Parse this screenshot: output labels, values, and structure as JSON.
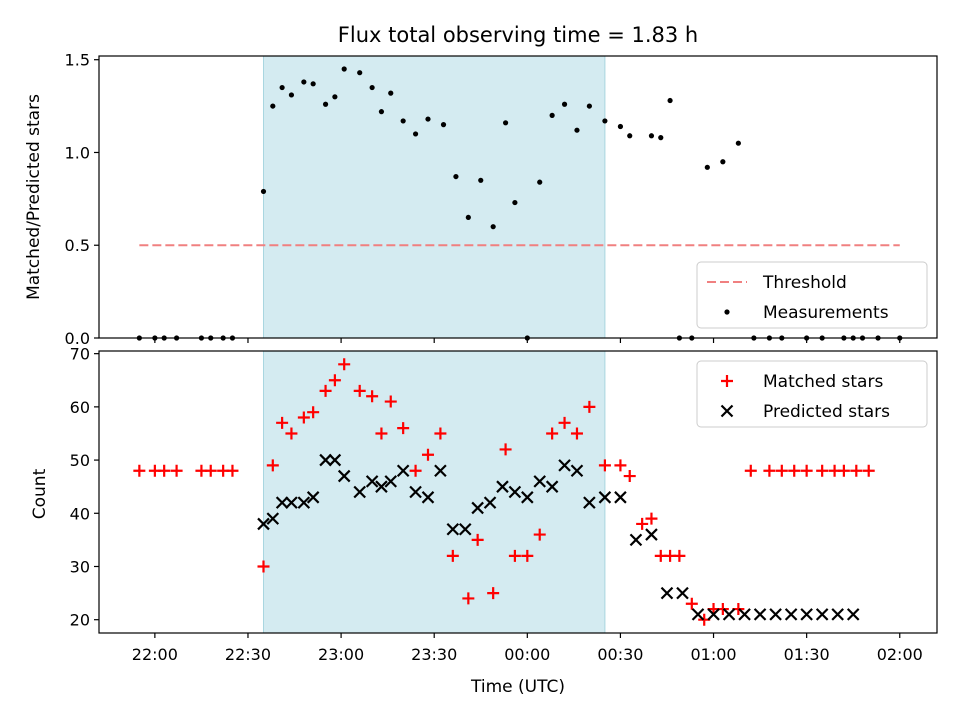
{
  "chart_data": [
    {
      "type": "scatter",
      "title": "Flux total observing time = 1.83 h",
      "xlabel": "",
      "ylabel": "Matched/Predicted stars",
      "ylim": [
        0,
        1.52
      ],
      "yticks": [
        "0.0",
        "0.5",
        "1.0",
        "1.5"
      ],
      "ytick_values": [
        0,
        0.5,
        1.0,
        1.5
      ],
      "shaded_interval": [
        "22:35",
        "00:25"
      ],
      "shade_color": "#d4ebf1",
      "threshold": {
        "name": "Threshold",
        "y": 0.5,
        "x_range": [
          "21:55",
          "02:00"
        ],
        "color": "#f08080"
      },
      "legend": {
        "position": "lower-right",
        "entries": [
          "Threshold",
          "Measurements"
        ]
      },
      "series": [
        {
          "name": "Measurements",
          "color": "#000000",
          "x": [
            "21:55",
            "22:00",
            "22:03",
            "22:07",
            "22:15",
            "22:18",
            "22:22",
            "22:25",
            "22:35",
            "22:38",
            "22:41",
            "22:44",
            "22:48",
            "22:51",
            "22:55",
            "22:58",
            "23:01",
            "23:06",
            "23:10",
            "23:13",
            "23:16",
            "23:20",
            "23:24",
            "23:28",
            "23:33",
            "23:37",
            "23:41",
            "23:45",
            "23:49",
            "23:53",
            "23:56",
            "00:00",
            "00:04",
            "00:08",
            "00:12",
            "00:16",
            "00:20",
            "00:25",
            "00:30",
            "00:33",
            "00:40",
            "00:43",
            "00:46",
            "00:49",
            "00:53",
            "00:58",
            "01:03",
            "01:08",
            "01:13",
            "01:18",
            "01:22",
            "01:30",
            "01:35",
            "01:42",
            "01:45",
            "01:48",
            "01:53",
            "02:00"
          ],
          "y": [
            0,
            0,
            0,
            0,
            0,
            0,
            0,
            0,
            0.79,
            1.25,
            1.35,
            1.31,
            1.38,
            1.37,
            1.26,
            1.3,
            1.45,
            1.43,
            1.35,
            1.22,
            1.32,
            1.17,
            1.1,
            1.18,
            1.15,
            0.87,
            0.65,
            0.85,
            0.6,
            1.16,
            0.73,
            0,
            0.84,
            1.2,
            1.26,
            1.12,
            1.25,
            1.17,
            1.14,
            1.09,
            1.09,
            1.08,
            1.28,
            0,
            0,
            0.92,
            0.95,
            1.05,
            0,
            0,
            0,
            0,
            0,
            0,
            0,
            0,
            0,
            0
          ]
        }
      ]
    },
    {
      "type": "scatter",
      "title": "",
      "xlabel": "Time (UTC)",
      "ylabel": "Count",
      "ylim": [
        17.5,
        70.5
      ],
      "yticks": [
        "20",
        "30",
        "40",
        "50",
        "60",
        "70"
      ],
      "ytick_values": [
        20,
        30,
        40,
        50,
        60,
        70
      ],
      "xticks": [
        "22:00",
        "22:30",
        "23:00",
        "23:30",
        "00:00",
        "00:30",
        "01:00",
        "01:30",
        "02:00"
      ],
      "xlim": [
        "21:42",
        "02:12"
      ],
      "shaded_interval": [
        "22:35",
        "00:25"
      ],
      "shade_color": "#d4ebf1",
      "legend": {
        "position": "top-right",
        "entries": [
          "Matched stars",
          "Predicted stars"
        ]
      },
      "series": [
        {
          "name": "Matched stars",
          "marker": "plus",
          "color": "#ff0000",
          "x": [
            "21:55",
            "22:00",
            "22:03",
            "22:07",
            "22:15",
            "22:18",
            "22:22",
            "22:25",
            "22:35",
            "22:38",
            "22:41",
            "22:44",
            "22:48",
            "22:51",
            "22:55",
            "22:58",
            "23:01",
            "23:06",
            "23:10",
            "23:13",
            "23:16",
            "23:20",
            "23:24",
            "23:28",
            "23:32",
            "23:36",
            "23:41",
            "23:44",
            "23:49",
            "23:53",
            "23:56",
            "00:00",
            "00:04",
            "00:08",
            "00:12",
            "00:16",
            "00:20",
            "00:25",
            "00:30",
            "00:33",
            "00:37",
            "00:40",
            "00:43",
            "00:46",
            "00:49",
            "00:53",
            "00:57",
            "01:00",
            "01:03",
            "01:08",
            "01:12",
            "01:18",
            "01:22",
            "01:26",
            "01:30",
            "01:35",
            "01:39",
            "01:42",
            "01:46",
            "01:50"
          ],
          "y": [
            48,
            48,
            48,
            48,
            48,
            48,
            48,
            48,
            30,
            49,
            57,
            55,
            58,
            59,
            63,
            65,
            68,
            63,
            62,
            55,
            61,
            56,
            48,
            51,
            55,
            32,
            24,
            35,
            25,
            52,
            32,
            32,
            36,
            55,
            57,
            55,
            60,
            49,
            49,
            47,
            38,
            39,
            32,
            32,
            32,
            23,
            20,
            22,
            22,
            22,
            48,
            48,
            48,
            48,
            48,
            48,
            48,
            48,
            48,
            48
          ]
        },
        {
          "name": "Predicted stars",
          "marker": "x",
          "color": "#000000",
          "x": [
            "22:35",
            "22:38",
            "22:41",
            "22:44",
            "22:48",
            "22:51",
            "22:55",
            "22:58",
            "23:01",
            "23:06",
            "23:10",
            "23:13",
            "23:16",
            "23:20",
            "23:24",
            "23:28",
            "23:32",
            "23:36",
            "23:40",
            "23:44",
            "23:48",
            "23:52",
            "23:56",
            "00:00",
            "00:04",
            "00:08",
            "00:12",
            "00:16",
            "00:20",
            "00:25",
            "00:30",
            "00:35",
            "00:40",
            "00:45",
            "00:50",
            "00:55",
            "01:00",
            "01:05",
            "01:10",
            "01:15",
            "01:20",
            "01:25",
            "01:30",
            "01:35",
            "01:40",
            "01:45"
          ],
          "y": [
            38,
            39,
            42,
            42,
            42,
            43,
            50,
            50,
            47,
            44,
            46,
            45,
            46,
            48,
            44,
            43,
            48,
            37,
            37,
            41,
            42,
            45,
            44,
            43,
            46,
            45,
            49,
            48,
            42,
            43,
            43,
            35,
            36,
            25,
            25,
            21,
            21,
            21,
            21,
            21,
            21,
            21,
            21,
            21,
            21,
            21
          ]
        }
      ]
    }
  ]
}
